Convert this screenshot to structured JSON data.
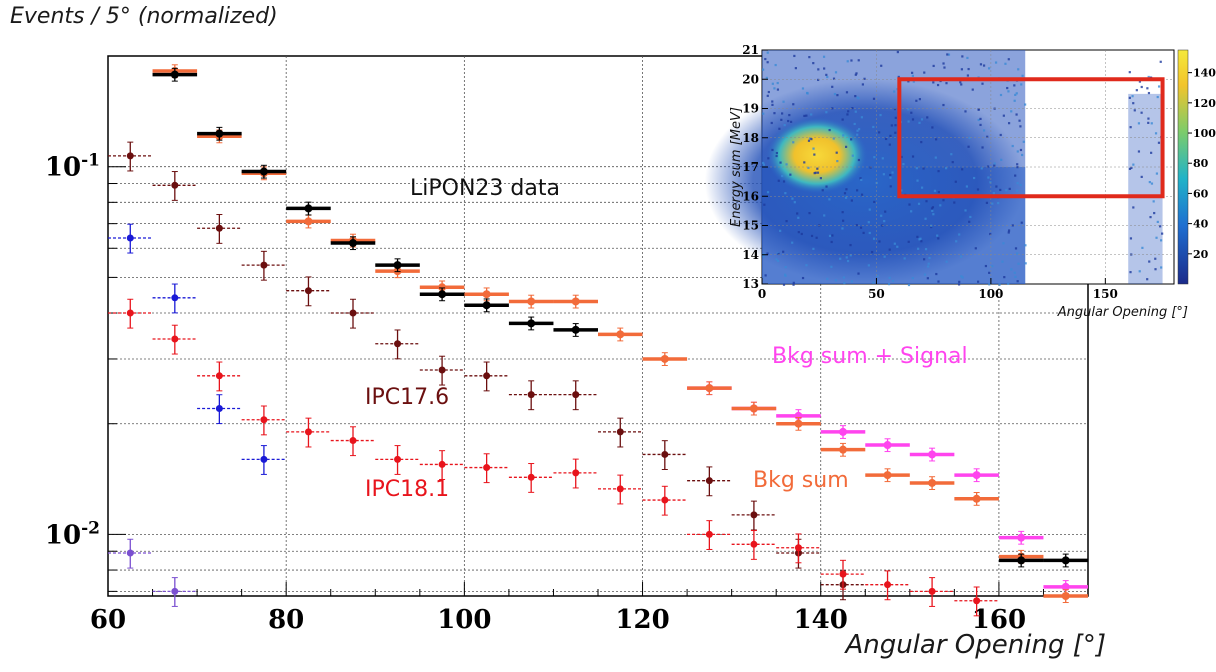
{
  "chart_data": [
    {
      "type": "scatter",
      "ylabel": "Events / 5° (normalized)",
      "xlabel": "Angular Opening [°]",
      "xlim": [
        60,
        170
      ],
      "ylim": [
        0.0068,
        0.2
      ],
      "yscale": "log",
      "grid": true,
      "x_ticks": [
        60,
        80,
        100,
        120,
        140,
        160
      ],
      "y_tick_labels": [
        "10^-1",
        "10^-2"
      ],
      "series": [
        {
          "name": "LiPON23 data",
          "color": "#000000",
          "x": [
            67.5,
            72.5,
            77.5,
            82.5,
            87.5,
            92.5,
            97.5,
            102.5,
            107.5,
            112.5,
            162.5,
            167.5
          ],
          "y": [
            0.178,
            0.123,
            0.097,
            0.077,
            0.062,
            0.054,
            0.045,
            0.042,
            0.0375,
            0.036,
            0.0085,
            0.0085
          ]
        },
        {
          "name": "Bkg sum + Signal",
          "color": "#ff44ee",
          "x": [
            127.5,
            132.5,
            137.5,
            142.5,
            147.5,
            152.5,
            157.5,
            162.5,
            167.5
          ],
          "y": [
            0.025,
            0.022,
            0.021,
            0.019,
            0.0175,
            0.0165,
            0.0145,
            0.0098,
            0.0072
          ]
        },
        {
          "name": "Bkg sum",
          "color": "#f26b3a",
          "x": [
            67.5,
            72.5,
            77.5,
            82.5,
            87.5,
            92.5,
            97.5,
            102.5,
            107.5,
            112.5,
            117.5,
            122.5,
            127.5,
            132.5,
            137.5,
            142.5,
            147.5,
            152.5,
            157.5,
            162.5,
            167.5
          ],
          "y": [
            0.182,
            0.121,
            0.096,
            0.071,
            0.063,
            0.052,
            0.047,
            0.045,
            0.043,
            0.043,
            0.035,
            0.03,
            0.025,
            0.022,
            0.02,
            0.017,
            0.0145,
            0.0138,
            0.0125,
            0.0087,
            0.0068
          ]
        },
        {
          "name": "IPC17.6",
          "color": "#6b0f0f",
          "x": [
            62.5,
            67.5,
            72.5,
            77.5,
            82.5,
            87.5,
            92.5,
            97.5,
            102.5,
            107.5,
            112.5,
            117.5,
            122.5,
            127.5,
            132.5,
            137.5,
            142.5
          ],
          "y": [
            0.107,
            0.089,
            0.068,
            0.054,
            0.046,
            0.04,
            0.033,
            0.028,
            0.027,
            0.024,
            0.024,
            0.019,
            0.0165,
            0.014,
            0.0113,
            0.0089,
            0.0073
          ]
        },
        {
          "name": "IPC18.1",
          "color": "#e8141c",
          "x": [
            62.5,
            67.5,
            72.5,
            77.5,
            82.5,
            87.5,
            92.5,
            97.5,
            102.5,
            107.5,
            112.5,
            117.5,
            122.5,
            127.5,
            132.5,
            137.5,
            142.5,
            147.5,
            152.5,
            157.5
          ],
          "y": [
            0.04,
            0.034,
            0.027,
            0.0205,
            0.019,
            0.018,
            0.016,
            0.0155,
            0.0152,
            0.0143,
            0.0147,
            0.0133,
            0.0124,
            0.01,
            0.0094,
            0.0092,
            0.0078,
            0.0073,
            0.007,
            0.0066
          ]
        },
        {
          "color": "#1a1ad6",
          "x": [
            62.5,
            67.5,
            72.5,
            77.5
          ],
          "y": [
            0.064,
            0.044,
            0.022,
            0.016
          ]
        },
        {
          "color": "#7a4fd0",
          "x": [
            62.5,
            67.5
          ],
          "y": [
            0.0089,
            0.007
          ]
        }
      ]
    },
    {
      "type": "heatmap",
      "xlabel": "Angular Opening [°]",
      "ylabel": "Energy sum [MeV]",
      "xlim": [
        0,
        180
      ],
      "ylim": [
        13,
        21
      ],
      "x_ticks": [
        0,
        50,
        100,
        150
      ],
      "y_ticks": [
        13,
        14,
        15,
        16,
        17,
        18,
        19,
        20,
        21
      ],
      "colorbar_ticks": [
        20,
        40,
        60,
        80,
        100,
        120,
        140
      ],
      "signal_box": {
        "x": [
          60,
          175
        ],
        "y": [
          16,
          20
        ],
        "color": "#e02a1c"
      }
    }
  ],
  "labels": {
    "ylabel_top": "Events / 5° (normalized)",
    "xlabel_bottom": "Angular Opening [°]",
    "data": "LiPON23 data",
    "bkg_signal": "Bkg sum + Signal",
    "bkg": "Bkg sum",
    "ipc176": "IPC17.6",
    "ipc181": "IPC18.1"
  }
}
